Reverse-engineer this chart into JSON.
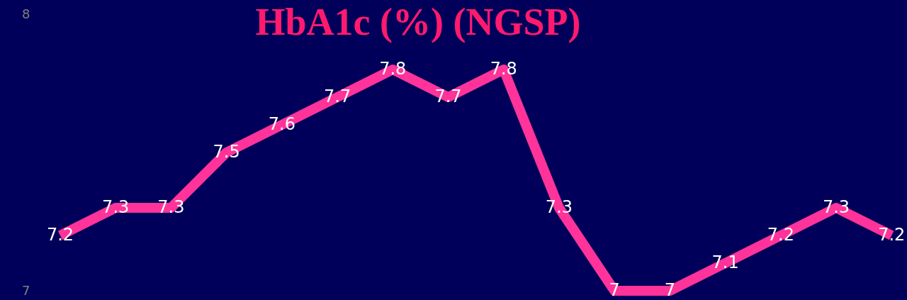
{
  "chart_data": {
    "type": "line",
    "title": "HbA1c (%) (NGSP)",
    "categories": [
      null,
      null,
      null,
      null,
      null,
      null,
      null,
      null,
      null,
      null,
      null,
      null,
      null,
      null,
      null,
      null
    ],
    "series": [
      {
        "color": "#ff3399",
        "values": [
          7.2,
          7.3,
          7.3,
          7.5,
          7.6,
          7.7,
          7.8,
          7.7,
          7.8,
          7.3,
          7,
          7,
          7.1,
          7.2,
          7.3,
          7.2
        ]
      }
    ],
    "ylim": [
      7,
      8
    ],
    "yticks": [
      7,
      8
    ],
    "data_labels": true,
    "tick_labels": "y",
    "line_style": "solid",
    "marker": "none"
  }
}
